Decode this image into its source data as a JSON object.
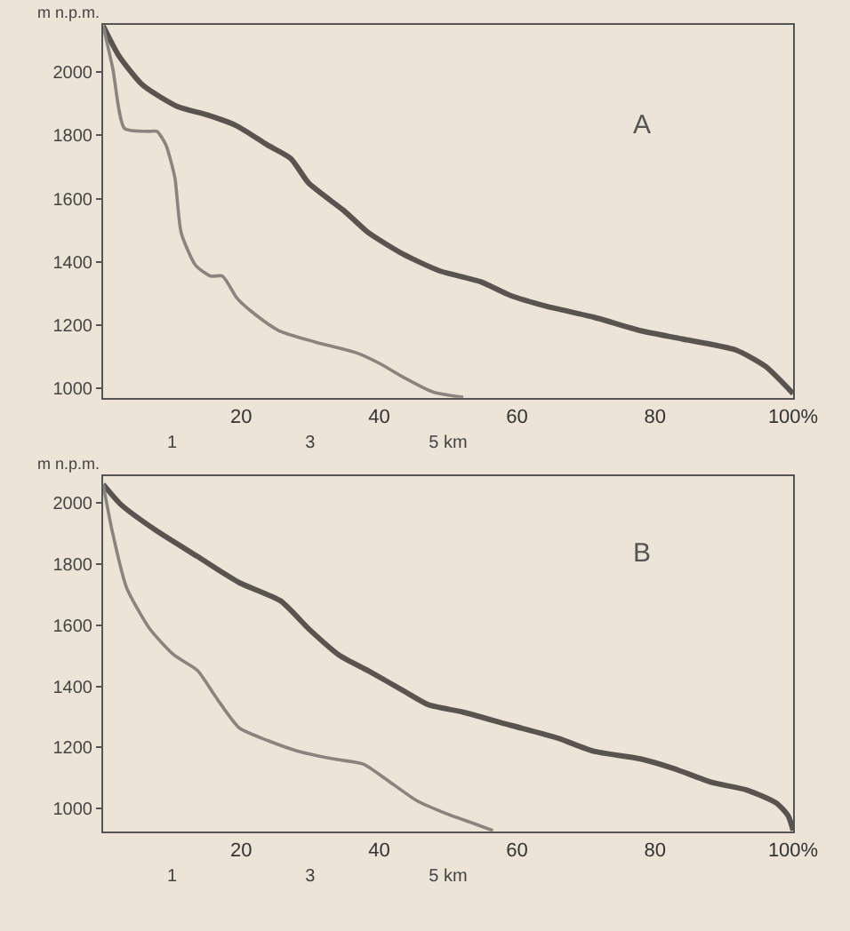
{
  "chart_data": [
    {
      "type": "line",
      "ylabel": "m n.p.m.",
      "annotations": [
        "A"
      ],
      "xlim": [
        0,
        100
      ],
      "xticks": [
        20,
        40,
        60,
        80,
        {
          "value": 100,
          "label": "100%"
        }
      ],
      "x2lim": [
        0,
        10
      ],
      "x2ticks": [
        1,
        3,
        {
          "value": 5,
          "label": "5 km"
        }
      ],
      "ylim": [
        970,
        2150
      ],
      "yticks": [
        1000,
        1200,
        1400,
        1600,
        1800,
        2000
      ],
      "line_style": "solid",
      "marker": "none",
      "series": [
        {
          "color": "#5a5450",
          "x": [
            0,
            2.2,
            5.7,
            10.8,
            15.1,
            19.4,
            23.8,
            27.2,
            29.8,
            34.9,
            38.4,
            43.5,
            48.7,
            54.7,
            59,
            64.2,
            71.1,
            77.9,
            83.9,
            91.7,
            96,
            100
          ],
          "values": [
            2147,
            2055,
            1960,
            1891,
            1865,
            1830,
            1770,
            1727,
            1649,
            1562,
            1493,
            1424,
            1372,
            1337,
            1294,
            1260,
            1225,
            1182,
            1156,
            1121,
            1069,
            983
          ]
        },
        {
          "color": "#8a847e",
          "x": [
            0,
            1.4,
            3.1,
            6.5,
            7.8,
            9.1,
            10.4,
            11.3,
            13.4,
            15.6,
            17.3,
            19.4,
            22,
            25.5,
            30.6,
            36.7,
            40.1,
            43.5,
            47.8,
            52.2
          ],
          "values": [
            2147,
            2012,
            1822,
            1813,
            1813,
            1770,
            1666,
            1493,
            1389,
            1355,
            1355,
            1285,
            1234,
            1182,
            1147,
            1112,
            1078,
            1035,
            988,
            971
          ]
        }
      ]
    },
    {
      "type": "line",
      "ylabel": "m n.p.m.",
      "annotations": [
        "B"
      ],
      "xlim": [
        0,
        100
      ],
      "xticks": [
        20,
        40,
        60,
        80,
        {
          "value": 100,
          "label": "100%"
        }
      ],
      "x2lim": [
        0,
        10
      ],
      "x2ticks": [
        1,
        3,
        {
          "value": 5,
          "label": "5 km"
        }
      ],
      "ylim": [
        925,
        2090
      ],
      "yticks": [
        1000,
        1200,
        1400,
        1600,
        1800,
        2000
      ],
      "line_style": "solid",
      "marker": "none",
      "series": [
        {
          "color": "#5a5450",
          "x": [
            0,
            2.6,
            7.7,
            13.7,
            19.7,
            25.7,
            29.9,
            34.2,
            38.5,
            43.7,
            47.1,
            52.2,
            59.1,
            65.9,
            71.1,
            77.9,
            83,
            88.2,
            93.3,
            97.6,
            99.3,
            100
          ],
          "values": [
            2062,
            1995,
            1910,
            1825,
            1740,
            1680,
            1586,
            1502,
            1450,
            1383,
            1340,
            1315,
            1272,
            1230,
            1187,
            1162,
            1128,
            1085,
            1060,
            1017,
            975,
            927
          ]
        },
        {
          "color": "#8a847e",
          "x": [
            0,
            1.3,
            3.4,
            6.8,
            10.3,
            13.7,
            16.3,
            19.7,
            24,
            28.3,
            33.4,
            37.7,
            41.1,
            45.4,
            49.7,
            53.9,
            56.5
          ],
          "values": [
            2062,
            1910,
            1723,
            1587,
            1502,
            1451,
            1366,
            1264,
            1221,
            1187,
            1162,
            1145,
            1094,
            1026,
            983,
            949,
            927
          ]
        }
      ]
    }
  ]
}
